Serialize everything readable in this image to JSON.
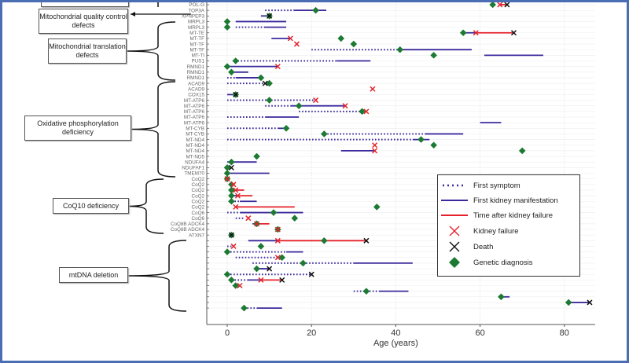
{
  "chart_data": {
    "type": "timeline",
    "xlabel": "Age (years)",
    "xticks": [
      0,
      20,
      40,
      60,
      80
    ],
    "xlim": [
      -4,
      88
    ],
    "grid": true,
    "legend_placement": "right",
    "legend": [
      {
        "key": "dotted",
        "label": "First symptom"
      },
      {
        "key": "blue",
        "label": "First kidney manifestation"
      },
      {
        "key": "red",
        "label": "Time after kidney failure"
      },
      {
        "key": "kf",
        "label": "Kidney failure"
      },
      {
        "key": "death",
        "label": "Death"
      },
      {
        "key": "dx",
        "label": "Genetic diagnosis"
      }
    ],
    "colors": {
      "dotted": "#3a2a9c",
      "blue": "#3a2a9c",
      "red": "#e5222b",
      "kf": "#e5222b",
      "death": "#111111",
      "dx": "#1d7a33"
    },
    "groups": [
      {
        "label": "",
        "rows": [
          0,
          0
        ]
      },
      {
        "label": "Mitochondrial quality control defects",
        "rows": [
          1,
          2
        ]
      },
      {
        "label": "Mitochondrial translation defects",
        "rows": [
          3,
          13
        ]
      },
      {
        "label": "Oxidative phosphorylation deficiency",
        "rows": [
          14,
          30
        ]
      },
      {
        "label": "CoQ10 deficiency",
        "rows": [
          31,
          40
        ]
      },
      {
        "label": "mtDNA deletion",
        "rows": [
          42,
          54
        ]
      }
    ],
    "rows": [
      {
        "label": "POL-G",
        "dx": 63,
        "red": [
          64.7,
          66.4
        ],
        "kf": 64.7,
        "death": 66.4
      },
      {
        "label": "TOP3A",
        "dotted": [
          9,
          16
        ],
        "blue": [
          16,
          23.5
        ],
        "dx": 21
      },
      {
        "label": "XPNPEP3",
        "blue": [
          8,
          10
        ],
        "dx": 10,
        "death": 10
      },
      {
        "label": "MRPL3",
        "dx": 0,
        "blue": [
          2,
          14
        ]
      },
      {
        "label": "MRPL3",
        "dx": 0,
        "dotted": [
          2,
          9
        ],
        "blue": [
          9,
          14
        ]
      },
      {
        "label": "MT-TE",
        "dx": 56,
        "blue": [
          56,
          59
        ],
        "kf": 59,
        "red": [
          59,
          68
        ],
        "death": 68
      },
      {
        "label": "MT-TF",
        "blue": [
          10.5,
          15
        ],
        "kf": 15,
        "dx": 27
      },
      {
        "label": "MT-TF",
        "kf": 16.5,
        "dx": 30
      },
      {
        "label": "MT-TF",
        "dotted": [
          20,
          41
        ],
        "dx": 41,
        "blue": [
          41,
          58
        ]
      },
      {
        "label": "MT-TI",
        "dx": 49,
        "blue": [
          61,
          75
        ]
      },
      {
        "label": "PUS1",
        "dx": 2,
        "dotted": [
          2.5,
          26
        ],
        "blue": [
          26,
          34
        ]
      },
      {
        "label": "RMND1",
        "dx": 0,
        "blue": [
          0,
          12
        ],
        "kf": 12
      },
      {
        "label": "RMND1",
        "dx": 1,
        "blue": [
          1,
          5
        ]
      },
      {
        "label": "RMND1",
        "dotted": [
          0,
          2
        ],
        "blue": [
          2,
          8
        ],
        "dx": 8
      },
      {
        "label": "ACAD9",
        "dotted": [
          0,
          9
        ],
        "death": 9,
        "dx": 10
      },
      {
        "label": "ACAD9",
        "kf": 34.5
      },
      {
        "label": "COX15",
        "blue": [
          0,
          2
        ],
        "dx": 2,
        "death": 2
      },
      {
        "label": "MT-ATP6",
        "dotted": [
          0,
          21
        ],
        "dx": 10,
        "kf": 21
      },
      {
        "label": "MT-ATP6",
        "dotted": [
          9,
          15
        ],
        "blue": [
          15,
          28
        ],
        "dx": 17,
        "kf": 28
      },
      {
        "label": "MT-ATP6",
        "dotted": [
          17,
          32
        ],
        "dx": 32,
        "kf": 33
      },
      {
        "label": "MT-ATP6",
        "dotted": [
          0,
          9
        ],
        "blue": [
          9,
          17
        ]
      },
      {
        "label": "MT-ATP6",
        "blue": [
          60,
          65
        ]
      },
      {
        "label": "MT-CYB",
        "dotted": [
          0,
          12
        ],
        "blue": [
          12,
          14
        ],
        "dx": 14
      },
      {
        "label": "MT-CYB",
        "dx": 23,
        "dotted": [
          23,
          47
        ],
        "blue": [
          47,
          56
        ]
      },
      {
        "label": "MT-ND4",
        "dotted": [
          0,
          44
        ],
        "blue": [
          44,
          48
        ],
        "dx": 46
      },
      {
        "label": "MT-ND4",
        "kf": 35,
        "dx": 49
      },
      {
        "label": "MT-ND4",
        "blue": [
          27,
          35
        ],
        "kf": 35,
        "dx": 70
      },
      {
        "label": "MT-ND5",
        "dx": 7
      },
      {
        "label": "NDUFA4",
        "blue": [
          0,
          7
        ],
        "dx": 1
      },
      {
        "label": "NDUFAF1",
        "dx": 0,
        "death": 1
      },
      {
        "label": "TMEM70",
        "dx": 0,
        "blue": [
          0,
          10
        ]
      },
      {
        "label": "CoQ2",
        "dx": 0,
        "kf": 0
      },
      {
        "label": "CoQ2",
        "dx": 1,
        "kf": 1.5
      },
      {
        "label": "CoQ2",
        "dx": 1,
        "red": [
          2,
          4
        ],
        "kf": 2
      },
      {
        "label": "CoQ2",
        "dx": 1,
        "blue": [
          1,
          2.5
        ],
        "kf": 2.5,
        "red": [
          2.5,
          6
        ]
      },
      {
        "label": "CoQ2",
        "dx": 1,
        "dotted": [
          1,
          3
        ],
        "blue": [
          3,
          7
        ]
      },
      {
        "label": "CoQ2",
        "kf": 2,
        "red": [
          2,
          16
        ],
        "dx": 35.5
      },
      {
        "label": "CoQ6",
        "dotted": [
          0,
          3
        ],
        "blue": [
          3,
          18
        ],
        "dx": 11
      },
      {
        "label": "CoQ6",
        "dotted": [
          2,
          4
        ],
        "kf": 5,
        "dx": 16
      },
      {
        "label": "CoQ8B ADCK4",
        "blue": [
          6,
          7
        ],
        "dx": 7,
        "kf": 7,
        "red": [
          7,
          10
        ]
      },
      {
        "label": "CoQ8B ADCK4",
        "dx": 12,
        "kf": 12
      },
      {
        "label": "ATXN7",
        "dx": 1,
        "death": 1
      },
      {
        "label": "",
        "blue": [
          5,
          12
        ],
        "kf": 12,
        "red": [
          12,
          33
        ],
        "dx": 23,
        "death": 33
      },
      {
        "label": "",
        "dotted": [
          0,
          1
        ],
        "kf": 1.5,
        "dx": 8
      },
      {
        "label": "",
        "dx": 0,
        "dotted": [
          0,
          14
        ],
        "blue": [
          14,
          18
        ]
      },
      {
        "label": "",
        "dotted": [
          2,
          12
        ],
        "kf": 12,
        "dx": 13
      },
      {
        "label": "",
        "dotted": [
          6,
          30
        ],
        "dx": 18,
        "blue": [
          30,
          44
        ]
      },
      {
        "label": "",
        "dx": 7,
        "blue": [
          7,
          10
        ],
        "death": 10
      },
      {
        "label": "",
        "dx": 0,
        "dotted": [
          0,
          20
        ],
        "death": 20
      },
      {
        "label": "",
        "dx": 1,
        "dotted": [
          1,
          5
        ],
        "blue": [
          5,
          8
        ],
        "kf": 8,
        "red": [
          8,
          13
        ],
        "death": 13
      },
      {
        "label": "",
        "dx": 2,
        "kf": 3
      },
      {
        "label": "",
        "dotted": [
          30,
          36
        ],
        "dx": 33,
        "blue": [
          36,
          43
        ]
      },
      {
        "label": "",
        "dx": 65,
        "blue": [
          65,
          67
        ]
      },
      {
        "label": "",
        "dx": 81,
        "blue": [
          81,
          86
        ],
        "death": 86
      },
      {
        "label": "",
        "dx": 4,
        "dotted": [
          4,
          7
        ],
        "blue": [
          7,
          13
        ]
      }
    ]
  }
}
